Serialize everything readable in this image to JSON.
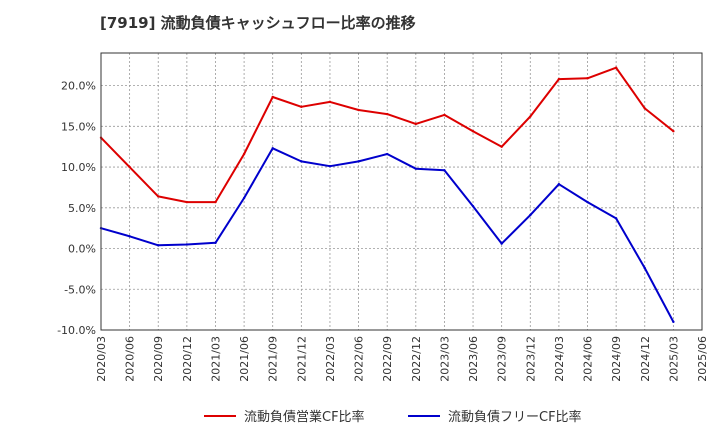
{
  "chart_data": {
    "type": "line",
    "title": "[7919]  流動負債キャッシュフロー比率の推移",
    "xlabel": "",
    "ylabel": "",
    "x": [
      "2020/03",
      "2020/06",
      "2020/09",
      "2020/12",
      "2021/03",
      "2021/06",
      "2021/09",
      "2021/12",
      "2022/03",
      "2022/06",
      "2022/09",
      "2022/12",
      "2023/03",
      "2023/06",
      "2023/09",
      "2023/12",
      "2024/03",
      "2024/06",
      "2024/09",
      "2024/12",
      "2025/03",
      "2025/06"
    ],
    "y_ticks": [
      "20.0%",
      "15.0%",
      "10.0%",
      "5.0%",
      "0.0%",
      "-5.0%",
      "-10.0%"
    ],
    "ylim": [
      -10,
      24
    ],
    "grid": true,
    "legend_position": "bottom",
    "series": [
      {
        "name": "流動負債営業CF比率",
        "color": "#dd0000",
        "values": [
          13.6,
          10.0,
          6.4,
          5.7,
          5.7,
          11.6,
          18.6,
          17.4,
          18.0,
          17.0,
          16.5,
          15.3,
          16.4,
          14.4,
          12.5,
          16.2,
          20.8,
          20.9,
          22.2,
          17.2,
          14.4,
          null
        ]
      },
      {
        "name": "流動負債フリーCF比率",
        "color": "#0000cc",
        "values": [
          2.5,
          1.5,
          0.4,
          0.5,
          0.7,
          6.2,
          12.3,
          10.7,
          10.1,
          10.7,
          11.6,
          9.8,
          9.6,
          5.2,
          0.6,
          4.1,
          7.9,
          5.7,
          3.7,
          -2.4,
          -9.0,
          null
        ]
      }
    ]
  }
}
